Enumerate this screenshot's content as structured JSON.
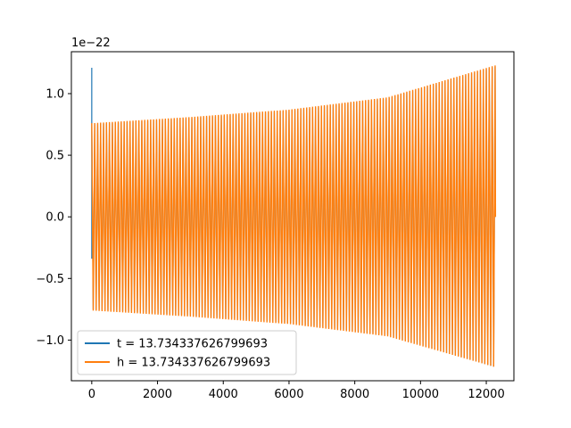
{
  "chart_data": {
    "type": "line",
    "title": "",
    "xlabel": "",
    "ylabel": "",
    "y_offset_label": "1e−22",
    "xlim": [
      -620,
      12840
    ],
    "ylim": [
      -1.33,
      1.34
    ],
    "xticks": [
      0,
      2000,
      4000,
      6000,
      8000,
      10000,
      12000
    ],
    "xtick_labels": [
      "0",
      "2000",
      "4000",
      "6000",
      "8000",
      "10000",
      "12000"
    ],
    "yticks": [
      -1.0,
      -0.5,
      0.0,
      0.5,
      1.0
    ],
    "ytick_labels": [
      "−1.0",
      "−0.5",
      "0.0",
      "0.5",
      "1.0"
    ],
    "grid": false,
    "legend_position": "lower-left",
    "series": [
      {
        "name": "t = 13.734337626799693",
        "color": "#1f77b4",
        "x_range": [
          0,
          12280
        ],
        "start_spike": {
          "x": [
            0,
            0,
            0
          ],
          "y": [
            -0.12,
            1.21,
            -0.34
          ]
        },
        "envelope": {
          "x": [
            0,
            3000,
            6000,
            9000,
            12280
          ],
          "upper": [
            0.75,
            0.8,
            0.86,
            0.96,
            1.22
          ],
          "lower": [
            -0.75,
            -0.8,
            -0.86,
            -0.96,
            -1.22
          ]
        }
      },
      {
        "name": "h = 13.734337626799693",
        "color": "#ff7f0e",
        "x_range": [
          0,
          12280
        ],
        "envelope": {
          "x": [
            0,
            3000,
            6000,
            9000,
            12280
          ],
          "upper": [
            0.76,
            0.81,
            0.87,
            0.97,
            1.23
          ],
          "lower": [
            -0.76,
            -0.81,
            -0.87,
            -0.97,
            -1.22
          ]
        }
      }
    ]
  }
}
